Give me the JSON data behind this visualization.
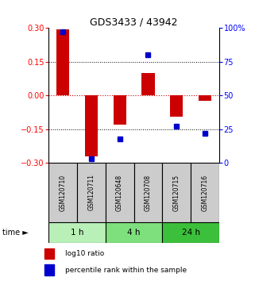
{
  "title": "GDS3433 / 43942",
  "samples": [
    "GSM120710",
    "GSM120711",
    "GSM120648",
    "GSM120708",
    "GSM120715",
    "GSM120716"
  ],
  "log10_ratio": [
    0.295,
    -0.27,
    -0.13,
    0.1,
    -0.095,
    -0.022
  ],
  "percentile_rank": [
    97,
    3,
    18,
    80,
    27,
    22
  ],
  "time_groups": [
    {
      "label": "1 h",
      "start": 0,
      "end": 2,
      "color": "#b8f0b8"
    },
    {
      "label": "4 h",
      "start": 2,
      "end": 4,
      "color": "#7de07d"
    },
    {
      "label": "24 h",
      "start": 4,
      "end": 6,
      "color": "#3cc03c"
    }
  ],
  "ylim_left": [
    -0.3,
    0.3
  ],
  "ylim_right": [
    0,
    100
  ],
  "yticks_left": [
    -0.3,
    -0.15,
    0,
    0.15,
    0.3
  ],
  "yticks_right": [
    0,
    25,
    50,
    75,
    100
  ],
  "ytick_labels_right": [
    "0",
    "25",
    "50",
    "75",
    "100%"
  ],
  "bar_color": "#cc0000",
  "dot_color": "#0000cc",
  "zero_line_color": "#cc0000",
  "background_color": "#ffffff",
  "label_bg_color": "#cccccc",
  "legend_bar_label": "log10 ratio",
  "legend_dot_label": "percentile rank within the sample",
  "bar_width": 0.45
}
